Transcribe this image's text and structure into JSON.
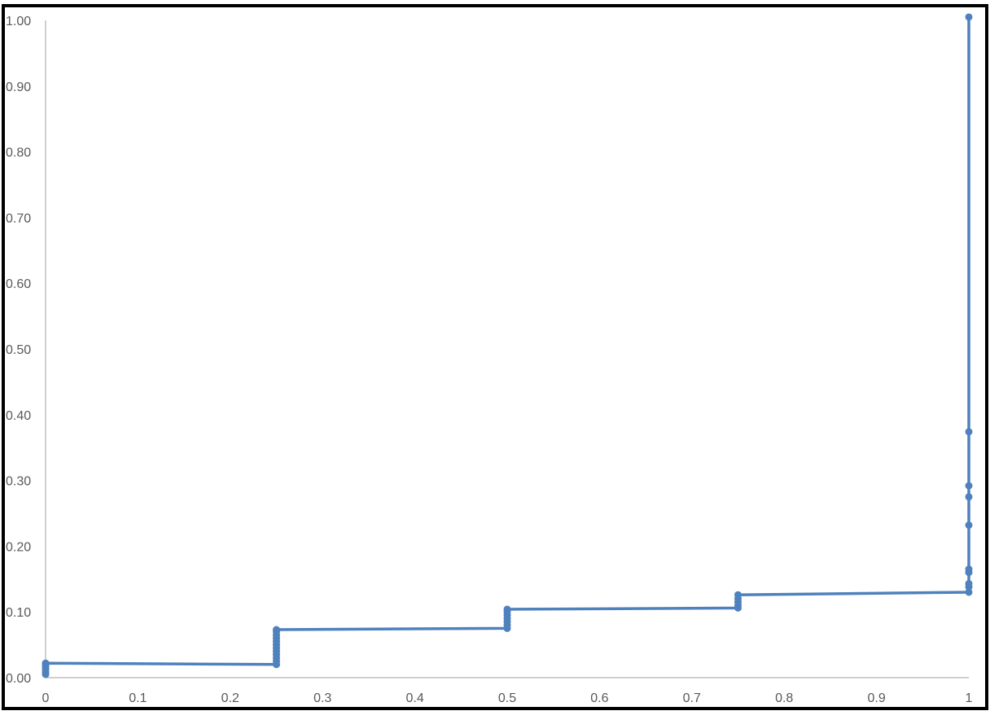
{
  "chart_data": {
    "type": "scatter",
    "title": "",
    "xlabel": "",
    "ylabel": "",
    "xlim": [
      0,
      1
    ],
    "ylim": [
      0,
      1
    ],
    "grid": false,
    "legend": "none",
    "x_ticks": [
      "0",
      "0.1",
      "0.2",
      "0.3",
      "0.4",
      "0.5",
      "0.6",
      "0.7",
      "0.8",
      "0.9",
      "1"
    ],
    "y_ticks": [
      "0.00",
      "0.10",
      "0.20",
      "0.30",
      "0.40",
      "0.50",
      "0.60",
      "0.70",
      "0.80",
      "0.90",
      "1.00"
    ],
    "colors": {
      "series": "#4f81bd",
      "axis": "#bfbfbf",
      "tick_text": "#595959",
      "frame": "#000000"
    },
    "series": [
      {
        "points": [
          [
            0,
            0.005
          ],
          [
            0,
            0.008
          ],
          [
            0,
            0.012
          ],
          [
            0,
            0.015
          ],
          [
            0,
            0.018
          ],
          [
            0,
            0.02
          ],
          [
            0,
            0.022
          ],
          [
            0.25,
            0.02
          ],
          [
            0.25,
            0.025
          ],
          [
            0.25,
            0.03
          ],
          [
            0.25,
            0.035
          ],
          [
            0.25,
            0.04
          ],
          [
            0.25,
            0.045
          ],
          [
            0.25,
            0.05
          ],
          [
            0.25,
            0.055
          ],
          [
            0.25,
            0.06
          ],
          [
            0.25,
            0.065
          ],
          [
            0.25,
            0.07
          ],
          [
            0.25,
            0.073
          ],
          [
            0.5,
            0.075
          ],
          [
            0.5,
            0.08
          ],
          [
            0.5,
            0.085
          ],
          [
            0.5,
            0.09
          ],
          [
            0.5,
            0.095
          ],
          [
            0.5,
            0.1
          ],
          [
            0.5,
            0.104
          ],
          [
            0.75,
            0.106
          ],
          [
            0.75,
            0.11
          ],
          [
            0.75,
            0.115
          ],
          [
            0.75,
            0.12
          ],
          [
            0.75,
            0.126
          ],
          [
            1,
            0.13
          ],
          [
            1,
            0.138
          ],
          [
            1,
            0.143
          ],
          [
            1,
            0.16
          ],
          [
            1,
            0.165
          ],
          [
            1,
            0.232
          ],
          [
            1,
            0.275
          ],
          [
            1,
            0.292
          ],
          [
            1,
            0.374
          ],
          [
            1,
            1.005
          ]
        ]
      }
    ]
  }
}
